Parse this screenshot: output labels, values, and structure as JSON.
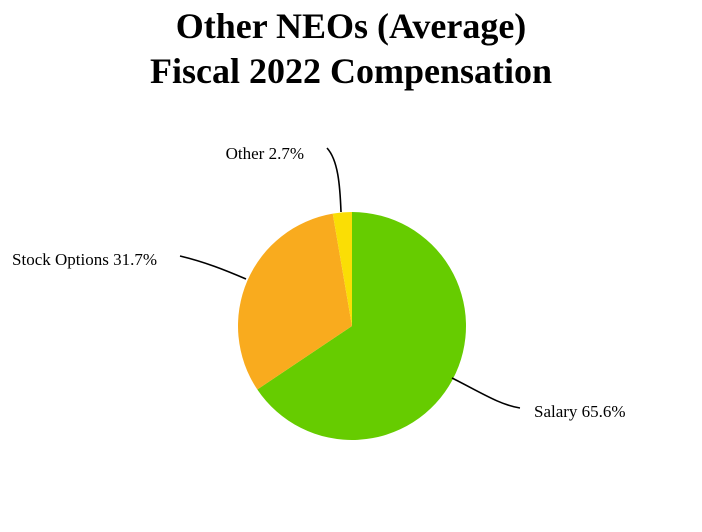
{
  "chart_data": {
    "type": "pie",
    "title": [
      "Other NEOs (Average)",
      "Fiscal 2022 Compensation"
    ],
    "slices": [
      {
        "label": "Salary",
        "value": 65.6,
        "display": "Salary 65.6%",
        "color": "#66cc00"
      },
      {
        "label": "Stock Options",
        "value": 31.7,
        "display": "Stock Options 31.7%",
        "color": "#f9ab1e"
      },
      {
        "label": "Other",
        "value": 2.7,
        "display": "Other 2.7%",
        "color": "#fade05"
      }
    ],
    "start_angle_deg": 0,
    "direction": "clockwise",
    "legend": "none"
  }
}
